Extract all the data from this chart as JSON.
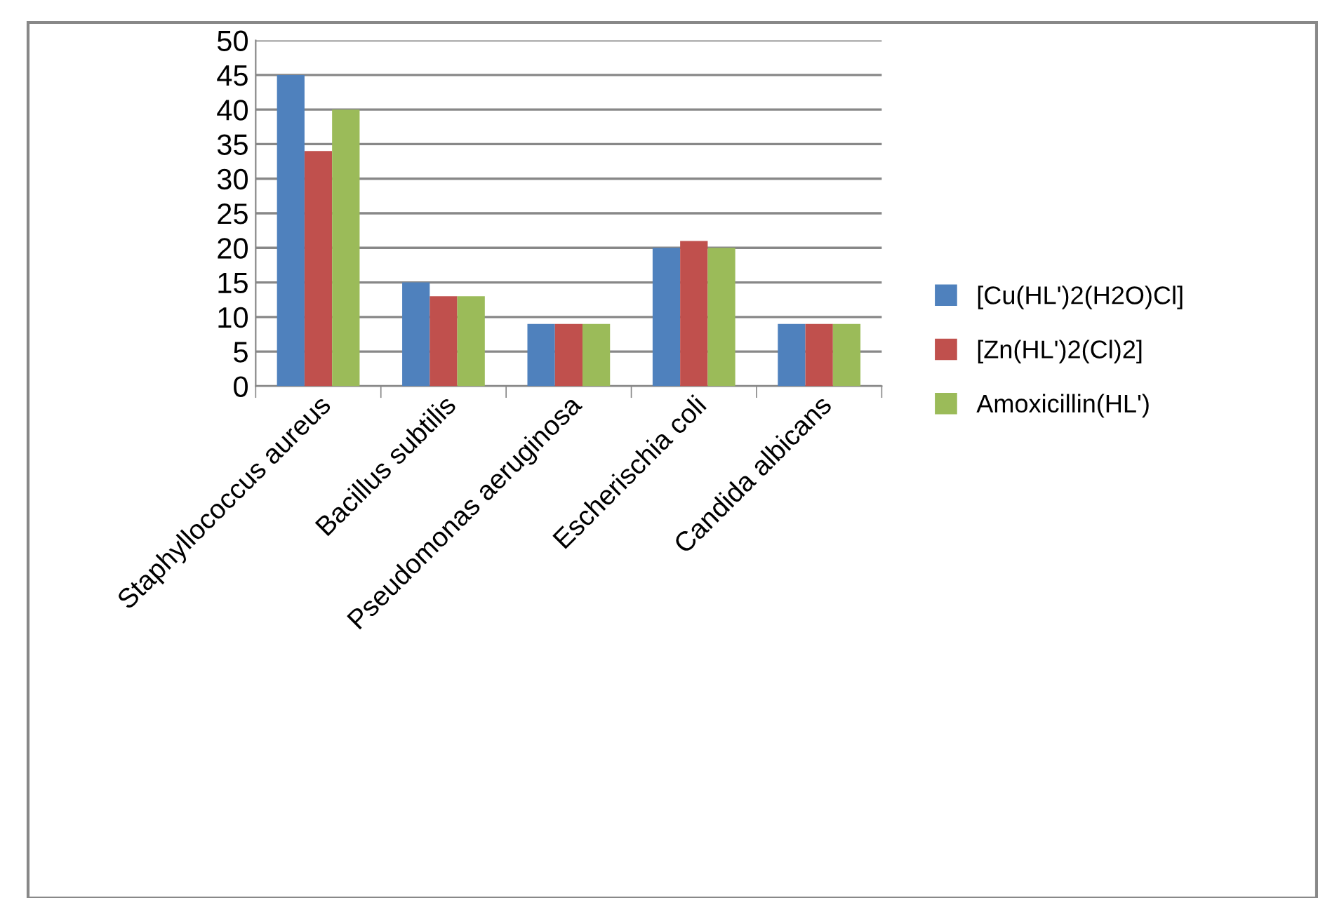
{
  "chart_data": {
    "type": "bar",
    "categories": [
      "Staphyllococcus aureus",
      "Bacillus subtilis",
      "Pseudomonas aeruginosa",
      "Escherischia coli",
      "Candida albicans"
    ],
    "series": [
      {
        "name": "[Cu(HL')2(H2O)Cl]",
        "color": "#4f81bd",
        "values": [
          45,
          15,
          9,
          20,
          9
        ]
      },
      {
        "name": "[Zn(HL')2(Cl)2]",
        "color": "#c0504d",
        "values": [
          34,
          13,
          9,
          21,
          9
        ]
      },
      {
        "name": "Amoxicillin(HL')",
        "color": "#9bbb59",
        "values": [
          40,
          13,
          9,
          20,
          9
        ]
      }
    ],
    "ylim": [
      0,
      50
    ],
    "yticks": [
      0,
      5,
      10,
      15,
      20,
      25,
      30,
      35,
      40,
      45,
      50
    ],
    "grid": "y",
    "legend": "right"
  }
}
